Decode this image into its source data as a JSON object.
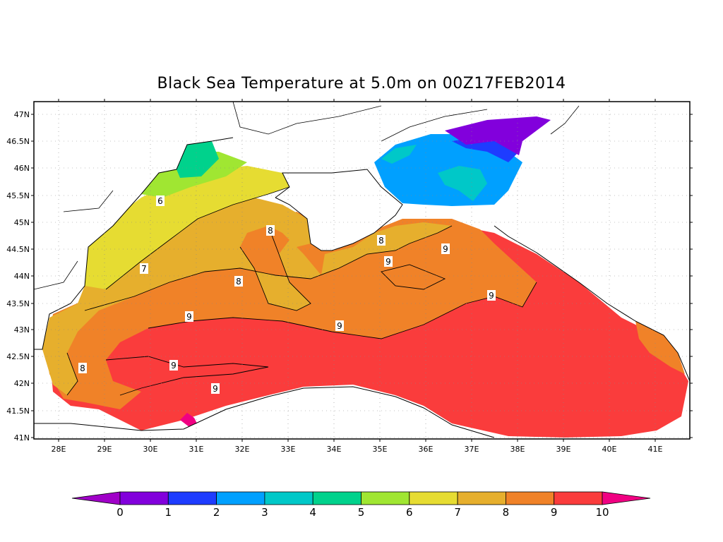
{
  "title": "Black Sea Temperature at 5.0m on 00Z17FEB2014",
  "lat_ticks": [
    "47N",
    "46.5N",
    "46N",
    "45.5N",
    "45N",
    "44.5N",
    "44N",
    "43.5N",
    "43N",
    "42.5N",
    "42N",
    "41.5N",
    "41N"
  ],
  "lon_ticks": [
    "28E",
    "29E",
    "30E",
    "31E",
    "32E",
    "33E",
    "34E",
    "35E",
    "36E",
    "37E",
    "38E",
    "39E",
    "40E",
    "41E"
  ],
  "colorbar": {
    "labels": [
      "0",
      "1",
      "2",
      "3",
      "4",
      "5",
      "6",
      "7",
      "8",
      "9",
      "10"
    ],
    "colors": [
      "#a000c8",
      "#8200dc",
      "#1e3cff",
      "#00a0ff",
      "#00c8c8",
      "#00d28c",
      "#a0e632",
      "#e6dc32",
      "#e6af2d",
      "#f08228",
      "#fa3c3c",
      "#f00082"
    ]
  },
  "contour_labels": [
    "6",
    "7",
    "8",
    "8",
    "8",
    "8",
    "9",
    "9",
    "9",
    "9",
    "9",
    "9"
  ]
}
